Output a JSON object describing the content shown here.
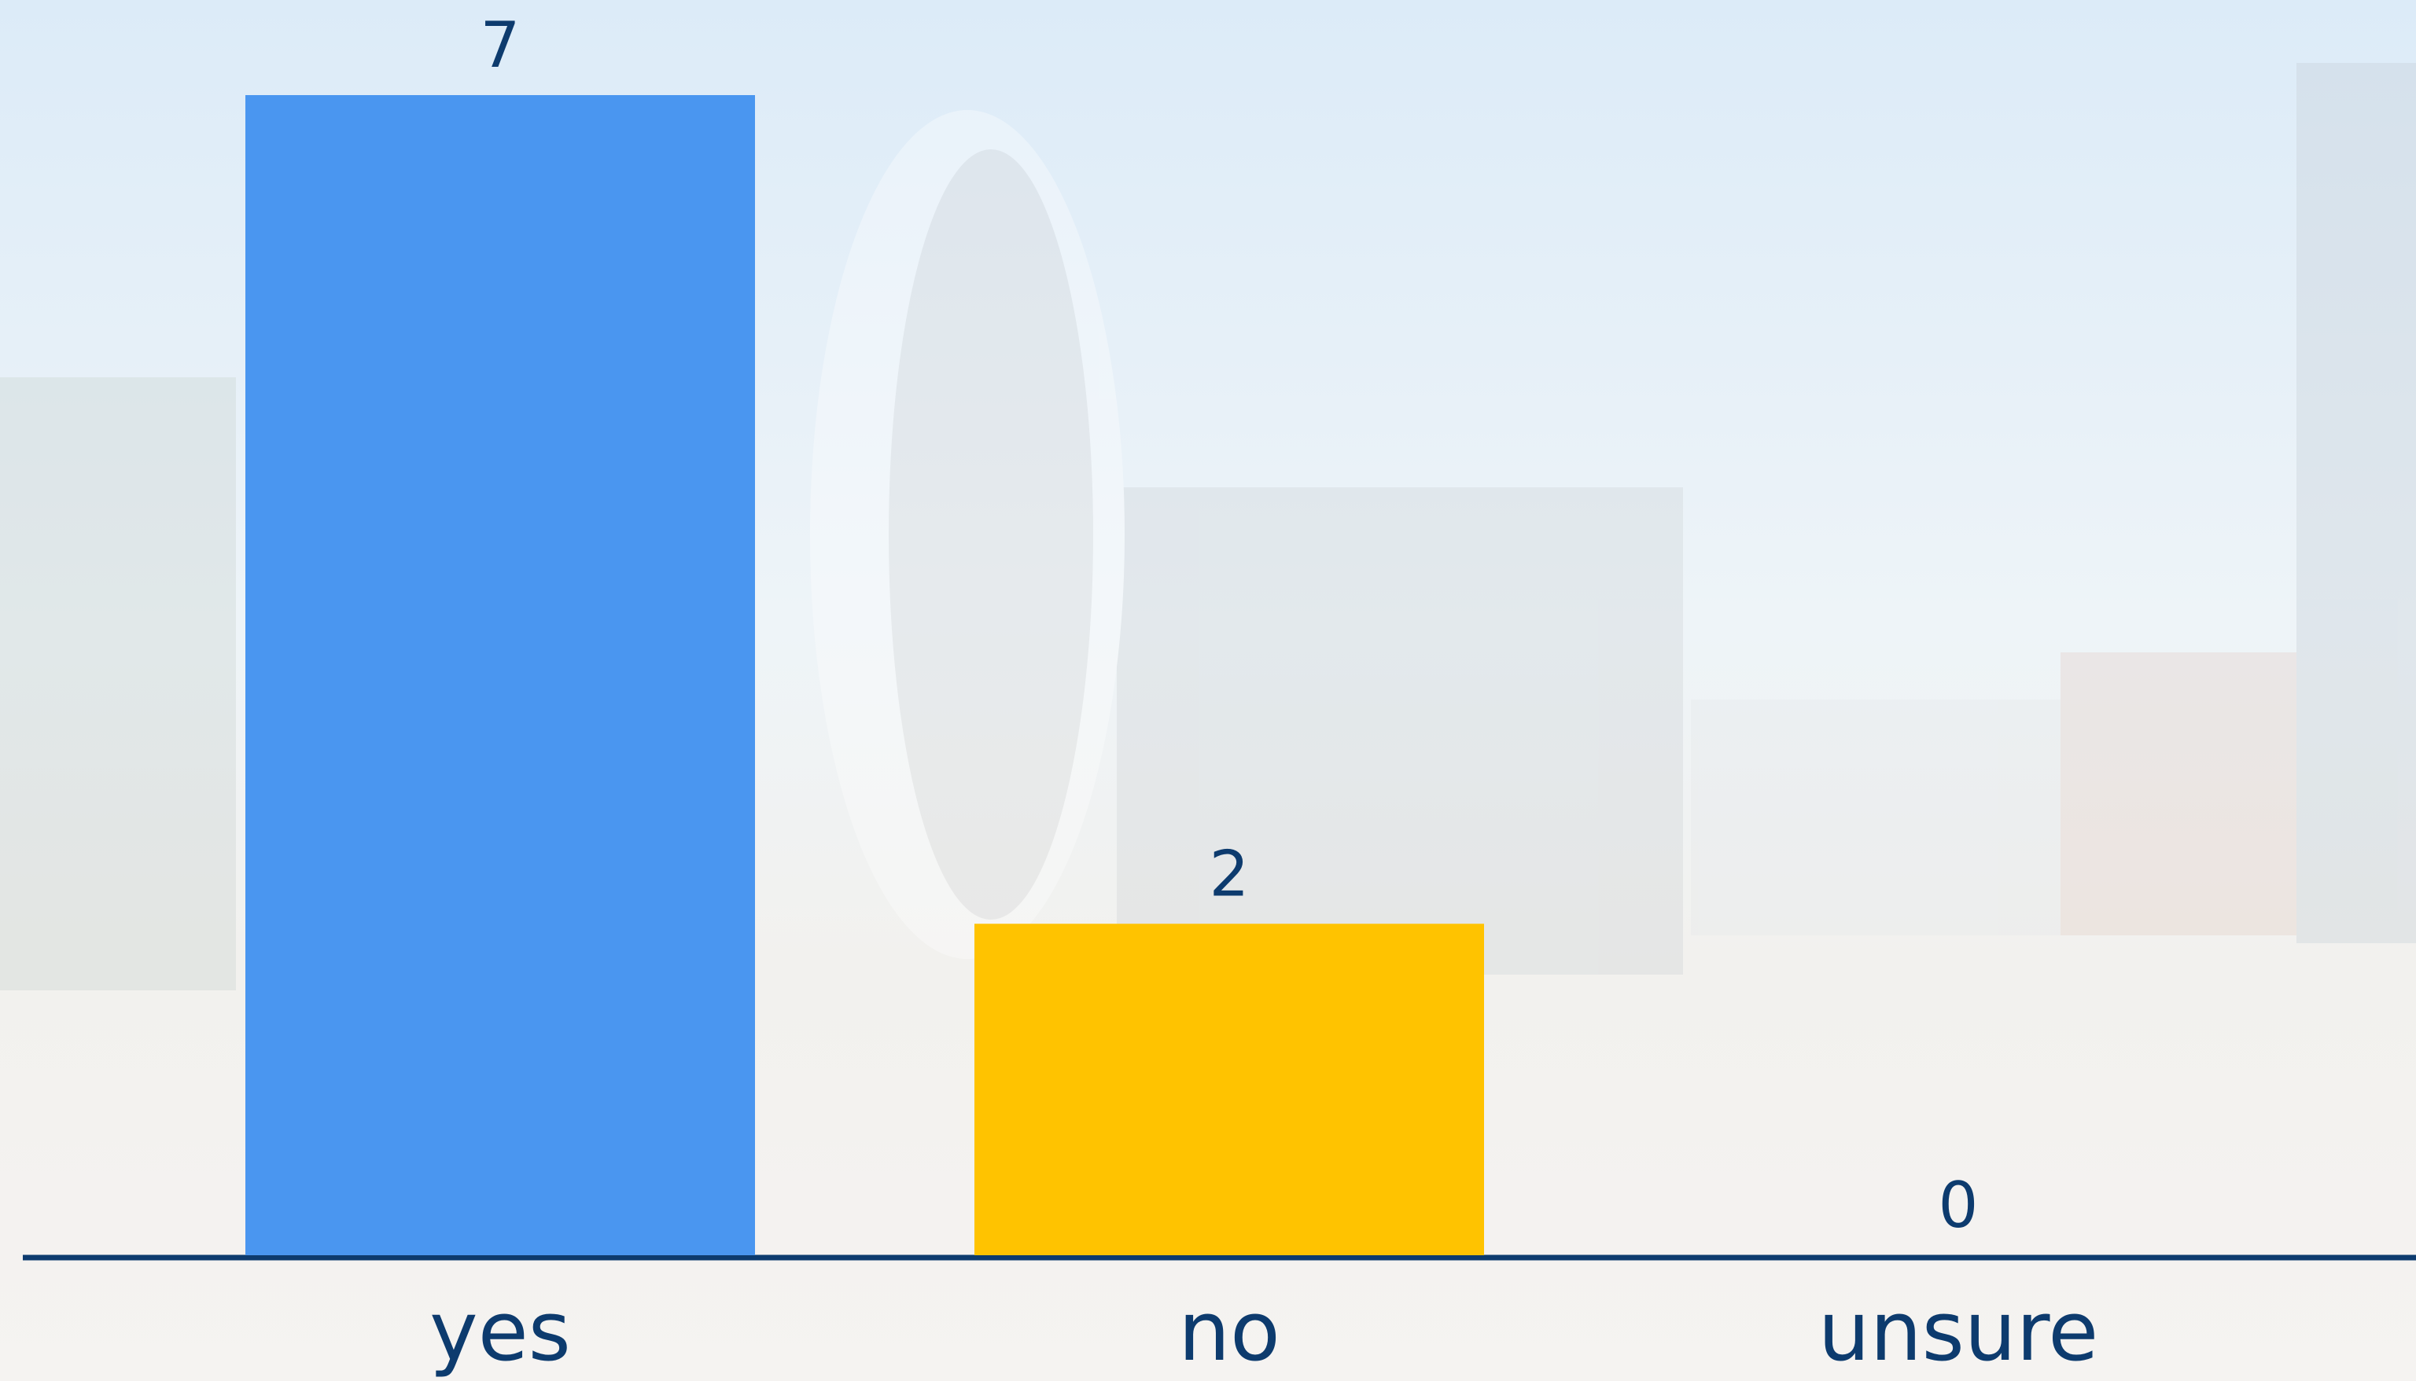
{
  "chart_data": {
    "type": "bar",
    "categories": [
      "yes",
      "no",
      "unsure"
    ],
    "values": [
      7,
      2,
      0
    ],
    "colors": [
      "#4a96f0",
      "#ffc300"
    ]
  }
}
